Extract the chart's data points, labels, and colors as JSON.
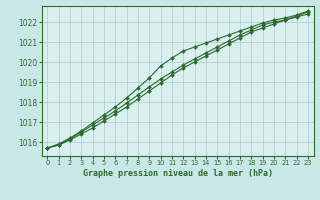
{
  "title": "Graphe pression niveau de la mer (hPa)",
  "background_color": "#c8e8e8",
  "plot_background": "#d8f0f0",
  "grid_color": "#b0c8c8",
  "line_color": "#2d6a2d",
  "marker_color": "#2d6a2d",
  "xlim": [
    -0.5,
    23.5
  ],
  "ylim": [
    1015.3,
    1022.8
  ],
  "yticks": [
    1016,
    1017,
    1018,
    1019,
    1020,
    1021,
    1022
  ],
  "xticks": [
    0,
    1,
    2,
    3,
    4,
    5,
    6,
    7,
    8,
    9,
    10,
    11,
    12,
    13,
    14,
    15,
    16,
    17,
    18,
    19,
    20,
    21,
    22,
    23
  ],
  "series": [
    [
      1015.7,
      1015.85,
      1016.15,
      1016.5,
      1016.85,
      1017.2,
      1017.55,
      1017.95,
      1018.35,
      1018.75,
      1019.15,
      1019.5,
      1019.85,
      1020.15,
      1020.45,
      1020.75,
      1021.05,
      1021.35,
      1021.6,
      1021.85,
      1022.0,
      1022.1,
      1022.3,
      1022.5
    ],
    [
      1015.7,
      1015.85,
      1016.1,
      1016.4,
      1016.7,
      1017.05,
      1017.4,
      1017.75,
      1018.15,
      1018.55,
      1018.95,
      1019.35,
      1019.7,
      1020.0,
      1020.3,
      1020.6,
      1020.9,
      1021.2,
      1021.5,
      1021.7,
      1021.9,
      1022.1,
      1022.25,
      1022.4
    ],
    [
      1015.7,
      1015.9,
      1016.2,
      1016.55,
      1016.95,
      1017.35,
      1017.75,
      1018.2,
      1018.7,
      1019.2,
      1019.8,
      1020.2,
      1020.55,
      1020.75,
      1020.95,
      1021.15,
      1021.35,
      1021.55,
      1021.75,
      1021.95,
      1022.1,
      1022.2,
      1022.35,
      1022.55
    ]
  ]
}
